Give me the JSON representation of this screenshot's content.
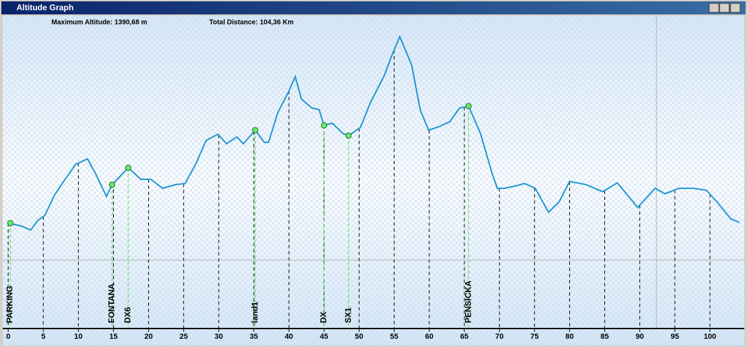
{
  "chart_data": {
    "type": "line",
    "title": "Altitude Graph",
    "annotations": [
      "Maximum Altitude: 1390,68 m",
      "Total Distance: 104,36 Km"
    ],
    "x": [
      0,
      1.8,
      3.2,
      4.2,
      5.2,
      6.6,
      8.1,
      9.6,
      11.3,
      12.5,
      14,
      14.8,
      15.9,
      17.1,
      18.9,
      20.3,
      22,
      23.8,
      25.2,
      26.7,
      28.2,
      29.9,
      31.1,
      32.6,
      33.5,
      35.2,
      36.5,
      37.1,
      38.4,
      39.9,
      40.9,
      41.8,
      43.3,
      44.3,
      45,
      46.2,
      47.7,
      48.5,
      50.2,
      51.6,
      53.6,
      54.7,
      55.8,
      57.5,
      58.7,
      59.9,
      61.4,
      62.9,
      64.3,
      65.6,
      67.3,
      69,
      69.7,
      70.7,
      72.1,
      73.6,
      75.1,
      77,
      78.5,
      80,
      82.4,
      84.7,
      86.8,
      89.7,
      92.2,
      93.6,
      95.6,
      97.6,
      99.5,
      101,
      103,
      104.2
    ],
    "series": [
      {
        "name": "Altitude",
        "color": "#1e96d2",
        "values": [
          502,
          489,
          469,
          515,
          538,
          636,
          711,
          782,
          808,
          734,
          629,
          685,
          724,
          766,
          711,
          711,
          668,
          685,
          691,
          782,
          896,
          926,
          880,
          913,
          880,
          945,
          887,
          887,
          1027,
          1125,
          1200,
          1092,
          1050,
          1043,
          968,
          978,
          929,
          919,
          958,
          1076,
          1206,
          1304,
          1390.68,
          1255,
          1043,
          945,
          962,
          985,
          1050,
          1060,
          929,
          734,
          668,
          668,
          678,
          691,
          668,
          554,
          603,
          701,
          685,
          652,
          694,
          577,
          668,
          642,
          668,
          668,
          659,
          603,
          522,
          505
        ]
      }
    ],
    "waypoints": [
      {
        "label": "PARKING",
        "x": 0.3,
        "y": 502
      },
      {
        "label": "FONTANA",
        "x": 14.8,
        "y": 685
      },
      {
        "label": "DX6",
        "x": 17.1,
        "y": 766
      },
      {
        "label": "land1",
        "x": 35.2,
        "y": 945
      },
      {
        "label": "DX",
        "x": 45,
        "y": 968
      },
      {
        "label": "SX1",
        "x": 48.5,
        "y": 919
      },
      {
        "label": "PENSICKA",
        "x": 65.6,
        "y": 1060
      }
    ],
    "xlim": [
      0,
      104.36
    ],
    "ylim": [
      0,
      1500
    ],
    "xticks": [
      0,
      5,
      10,
      15,
      20,
      25,
      30,
      35,
      40,
      45,
      50,
      55,
      60,
      65,
      70,
      75,
      80,
      85,
      90,
      95,
      100
    ],
    "grid": true
  }
}
